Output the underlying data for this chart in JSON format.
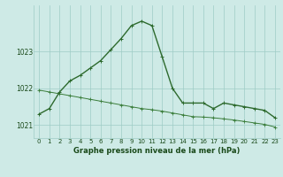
{
  "line1_x": [
    0,
    1,
    2,
    3,
    4,
    5,
    6,
    7,
    8,
    9,
    10,
    11,
    12,
    13,
    14,
    15,
    16,
    17,
    18,
    19,
    20,
    21,
    22,
    23
  ],
  "line1_y": [
    1021.3,
    1021.45,
    1021.9,
    1022.2,
    1022.35,
    1022.55,
    1022.75,
    1023.05,
    1023.35,
    1023.7,
    1023.82,
    1023.7,
    1022.85,
    1022.0,
    1021.6,
    1021.6,
    1021.6,
    1021.45,
    1021.6,
    1021.55,
    1021.5,
    1021.45,
    1021.4,
    1021.2
  ],
  "line2_x": [
    0,
    1,
    2,
    3,
    4,
    5,
    6,
    7,
    8,
    9,
    10,
    11,
    12,
    13,
    14,
    15,
    16,
    17,
    18,
    19,
    20,
    21,
    22,
    23
  ],
  "line2_y": [
    1021.95,
    1021.9,
    1021.85,
    1021.8,
    1021.75,
    1021.7,
    1021.65,
    1021.6,
    1021.55,
    1021.5,
    1021.45,
    1021.42,
    1021.38,
    1021.33,
    1021.28,
    1021.23,
    1021.22,
    1021.2,
    1021.17,
    1021.14,
    1021.1,
    1021.06,
    1021.02,
    1020.95
  ],
  "line_color1": "#2d6a2d",
  "line_color2": "#3a7d3a",
  "bg_color": "#ceeae6",
  "grid_color": "#9eccc6",
  "axis_color": "#1a4a1a",
  "xlabel": "Graphe pression niveau de la mer (hPa)",
  "ylim_min": 1020.65,
  "ylim_max": 1024.25,
  "yticks": [
    1021,
    1022,
    1023
  ],
  "xticks": [
    0,
    1,
    2,
    3,
    4,
    5,
    6,
    7,
    8,
    9,
    10,
    11,
    12,
    13,
    14,
    15,
    16,
    17,
    18,
    19,
    20,
    21,
    22,
    23
  ],
  "marker_size": 2.8,
  "linewidth1": 1.0,
  "linewidth2": 0.7,
  "tick_fontsize": 5.0,
  "xlabel_fontsize": 6.0
}
